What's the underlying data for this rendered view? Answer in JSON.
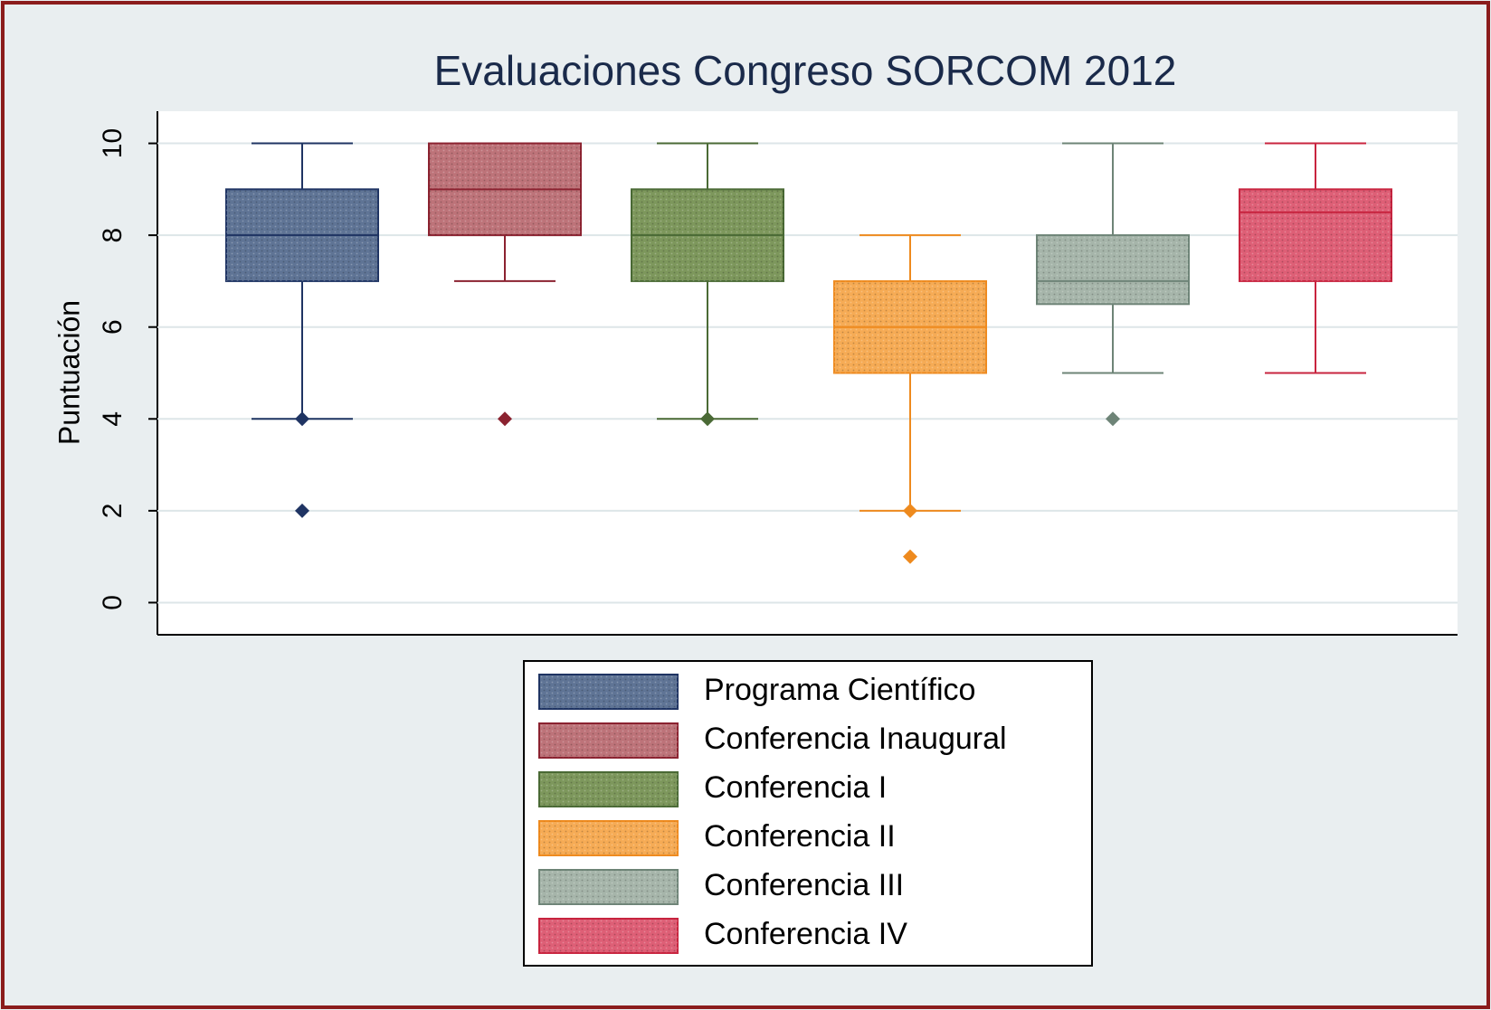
{
  "chart_data": {
    "type": "box",
    "title": "Evaluaciones Congreso SORCOM 2012",
    "y_label": "Puntuación",
    "ylim": [
      -0.7,
      10.7
    ],
    "yticks": [
      0,
      2,
      4,
      6,
      8,
      10
    ],
    "grid": true,
    "series": [
      {
        "name": "Programa Científico",
        "color": "#5f7495",
        "line_color": "#1f3463",
        "whisker_low": 4,
        "q1": 7,
        "median": 8,
        "q3": 9,
        "whisker_high": 10,
        "outliers": [
          4,
          2
        ]
      },
      {
        "name": "Conferencia Inaugural",
        "color": "#bd7379",
        "line_color": "#8b2230",
        "whisker_low": 7,
        "q1": 8,
        "median": 9,
        "q3": 10,
        "whisker_high": 10,
        "outliers": [
          4
        ]
      },
      {
        "name": "Conferencia I",
        "color": "#7d975c",
        "line_color": "#4a6a35",
        "whisker_low": 4,
        "q1": 7,
        "median": 8,
        "q3": 9,
        "whisker_high": 10,
        "outliers": [
          4
        ]
      },
      {
        "name": "Conferencia II",
        "color": "#f6ab55",
        "line_color": "#ee8a1e",
        "whisker_low": 2,
        "q1": 5,
        "median": 6,
        "q3": 7,
        "whisker_high": 8,
        "outliers": [
          2,
          1
        ]
      },
      {
        "name": "Conferencia III",
        "color": "#a6b5aa",
        "line_color": "#6e8477",
        "whisker_low": 5,
        "q1": 6.5,
        "median": 7,
        "q3": 8,
        "whisker_high": 10,
        "outliers": [
          4
        ]
      },
      {
        "name": "Conferencia IV",
        "color": "#de5f76",
        "line_color": "#c8243f",
        "whisker_low": 5,
        "q1": 7,
        "median": 8.5,
        "q3": 9,
        "whisker_high": 10,
        "outliers": []
      }
    ]
  }
}
